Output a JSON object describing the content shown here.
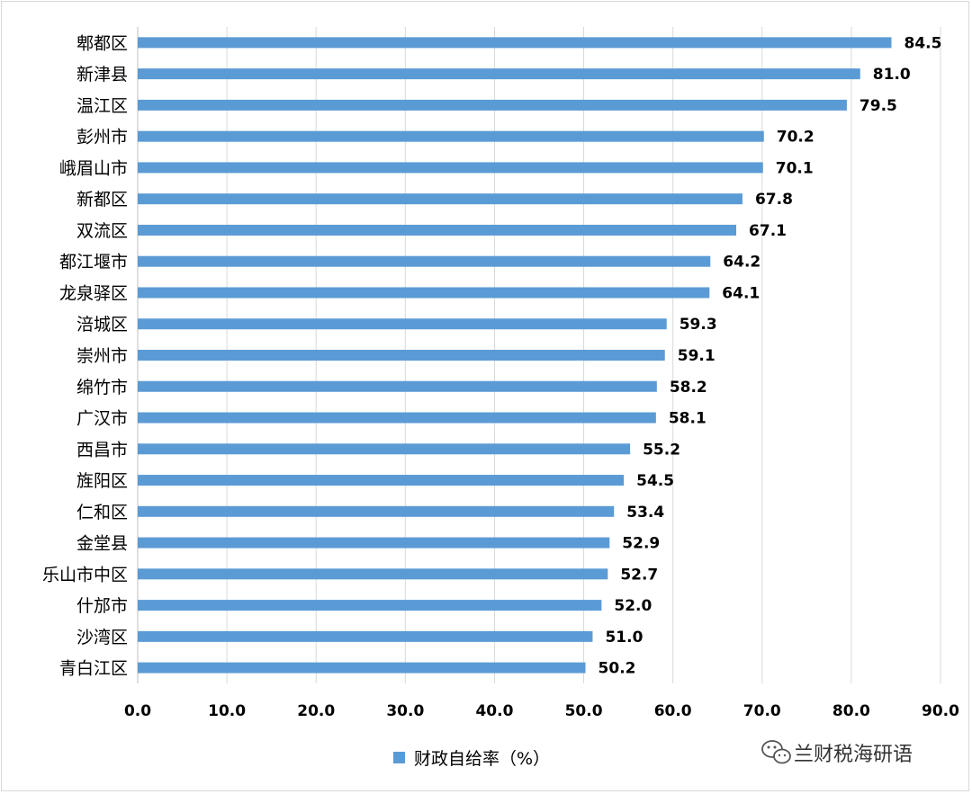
{
  "chart_data": {
    "type": "bar",
    "orientation": "horizontal",
    "categories": [
      "郫都区",
      "新津县",
      "温江区",
      "彭州市",
      "峨眉山市",
      "新都区",
      "双流区",
      "都江堰市",
      "龙泉驿区",
      "涪城区",
      "崇州市",
      "绵竹市",
      "广汉市",
      "西昌市",
      "旌阳区",
      "仁和区",
      "金堂县",
      "乐山市中区",
      "什邡市",
      "沙湾区",
      "青白江区"
    ],
    "series": [
      {
        "name": "财政自给率（%）",
        "color": "#5b9bd5",
        "values": [
          84.5,
          81.0,
          79.5,
          70.2,
          70.1,
          67.8,
          67.1,
          64.2,
          64.1,
          59.3,
          59.1,
          58.2,
          58.1,
          55.2,
          54.5,
          53.4,
          52.9,
          52.7,
          52.0,
          51.0,
          50.2
        ],
        "value_labels": [
          "84.5",
          "81.0",
          "79.5",
          "70.2",
          "70.1",
          "67.8",
          "67.1",
          "64.2",
          "64.1",
          "59.3",
          "59.1",
          "58.2",
          "58.1",
          "55.2",
          "54.5",
          "53.4",
          "52.9",
          "52.7",
          "52.0",
          "51.0",
          "50.2"
        ]
      }
    ],
    "xlim": [
      0,
      90
    ],
    "xticks": [
      "0.0",
      "10.0",
      "20.0",
      "30.0",
      "40.0",
      "50.0",
      "60.0",
      "70.0",
      "80.0",
      "90.0"
    ],
    "grid": "vertical",
    "legend": "bottom",
    "gridline_color": "#d9d9d9"
  },
  "watermark": {
    "text": "兰财税海研语",
    "icon": "wechat-icon"
  }
}
